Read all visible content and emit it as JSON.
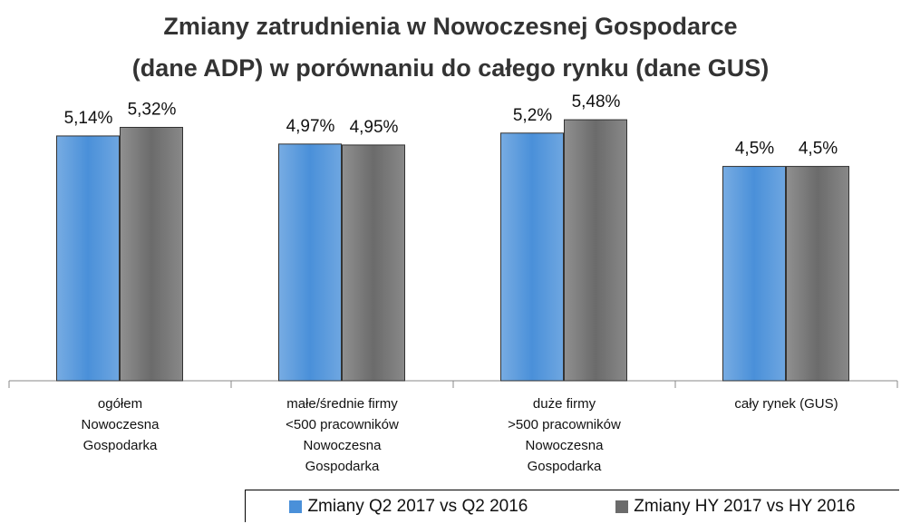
{
  "chart_data": {
    "type": "bar",
    "title": "Zmiany zatrudnienia w Nowoczesnej Gospodarce\n(dane ADP) w porównaniu do całego rynku (dane GUS)",
    "categories": [
      "ogółem\nNowoczesna\nGospodarka",
      "małe/średnie firmy\n<500 pracowników\nNowoczesna\nGospodarka",
      "duże firmy\n>500 pracowników\nNowoczesna\nGospodarka",
      "cały rynek (GUS)"
    ],
    "series": [
      {
        "name": "Zmiany Q2 2017 vs Q2 2016",
        "color": "#4a90d9",
        "values": [
          5.14,
          4.97,
          5.2,
          4.5
        ],
        "value_labels": [
          "5,14%",
          "4,97%",
          "5,2%",
          "4,5%"
        ]
      },
      {
        "name": "Zmiany HY 2017 vs HY 2016",
        "color": "#6b6b6b",
        "values": [
          5.32,
          4.95,
          5.48,
          4.5
        ],
        "value_labels": [
          "5,32%",
          "4,95%",
          "5,48%",
          "4,5%"
        ]
      }
    ],
    "ylim": [
      0,
      6.3
    ]
  }
}
